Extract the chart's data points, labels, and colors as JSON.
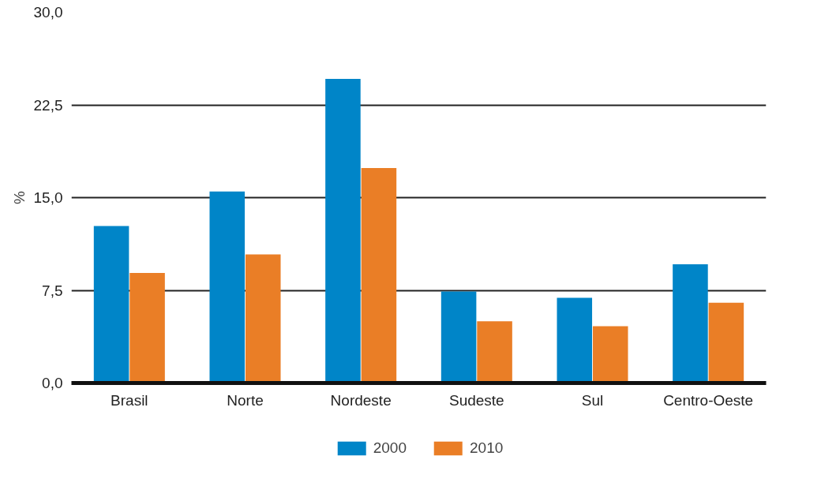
{
  "chart_data": {
    "type": "bar",
    "ylabel": "%",
    "categories": [
      "Brasil",
      "Norte",
      "Nordeste",
      "Sudeste",
      "Sul",
      "Centro-Oeste"
    ],
    "series": [
      {
        "name": "2000",
        "color": "#0085c8",
        "values": [
          12.7,
          15.5,
          24.6,
          7.4,
          6.9,
          9.6
        ]
      },
      {
        "name": "2010",
        "color": "#ea7e26",
        "values": [
          8.9,
          10.4,
          17.4,
          5.0,
          4.6,
          6.5
        ]
      }
    ],
    "ylim": [
      0,
      30
    ],
    "yticks": [
      {
        "value": 0,
        "label": "0,0"
      },
      {
        "value": 7.5,
        "label": "7,5"
      },
      {
        "value": 15,
        "label": "15,0"
      },
      {
        "value": 22.5,
        "label": "22,5"
      },
      {
        "value": 30,
        "label": "30,0"
      }
    ],
    "grid": "y",
    "legend": "bottom"
  }
}
